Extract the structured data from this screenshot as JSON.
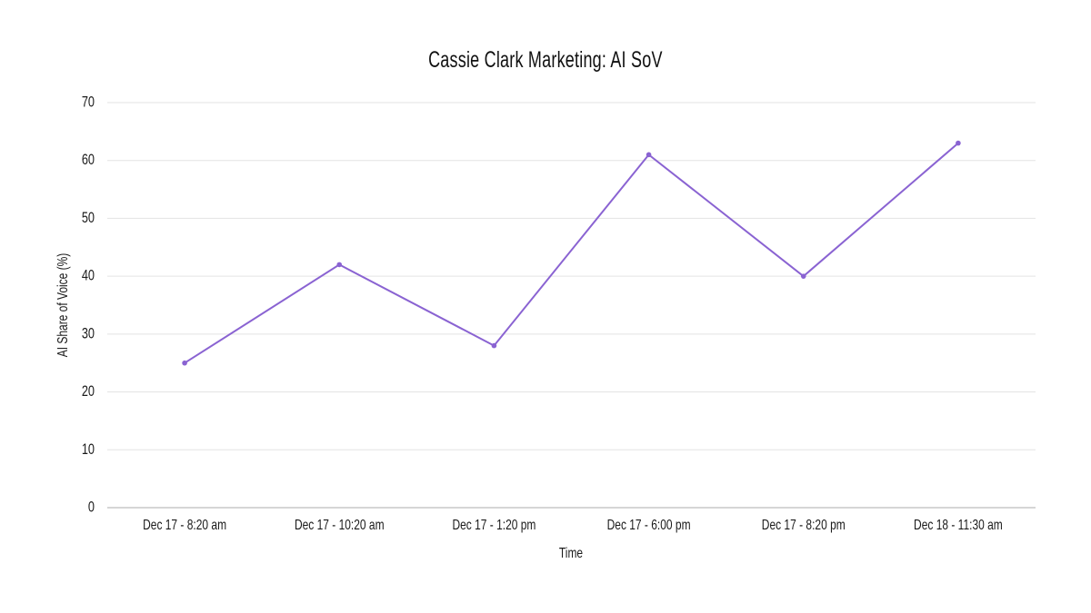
{
  "chart_data": {
    "type": "line",
    "title": "Cassie Clark Marketing: AI SoV",
    "xlabel": "Time",
    "ylabel": "AI Share of Voice (%)",
    "categories": [
      "Dec 17 - 8:20 am",
      "Dec 17 - 10:20 am",
      "Dec 17 - 1:20 pm",
      "Dec 17 - 6:00 pm",
      "Dec 17 - 8:20 pm",
      "Dec 18 - 11:30 am"
    ],
    "series": [
      {
        "name": "AI Share of Voice (%)",
        "values": [
          25,
          42,
          28,
          61,
          40,
          63
        ],
        "color": "#8a63d2"
      }
    ],
    "ylim": [
      0,
      70
    ],
    "yticks": [
      0,
      10,
      20,
      30,
      40,
      50,
      60,
      70
    ],
    "grid": true,
    "legend": "none"
  },
  "colors": {
    "line": "#8a63d2",
    "grid": "#e3e3e3",
    "axis": "#bdbdbd",
    "text": "#1a1a1a"
  }
}
